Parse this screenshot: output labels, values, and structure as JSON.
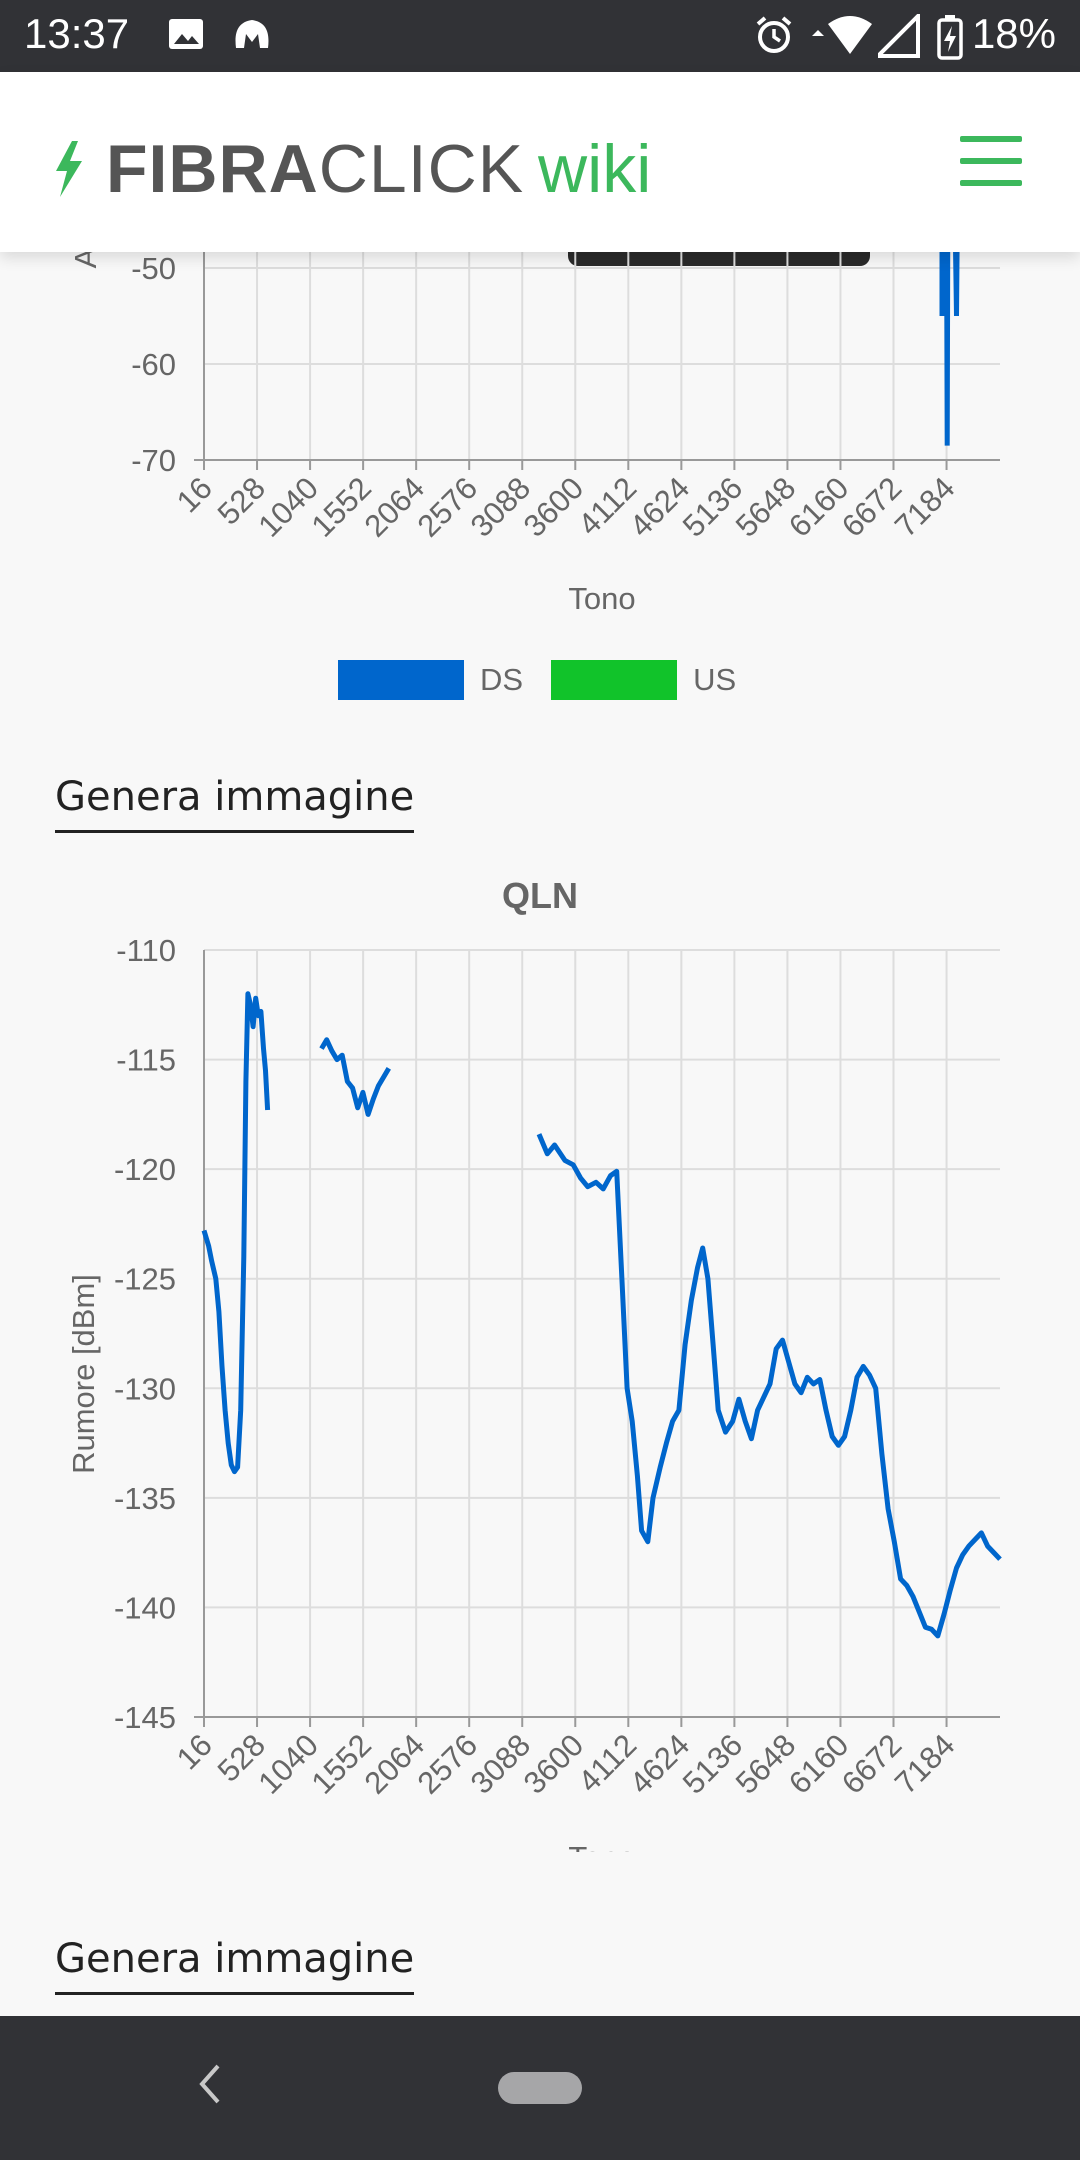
{
  "status_bar": {
    "time": "13:37",
    "battery": "18%",
    "icons": [
      "image-icon",
      "malwarebytes-icon",
      "alarm-icon",
      "wifi-icon",
      "signal-icon",
      "battery-charging-icon"
    ]
  },
  "header": {
    "logo_bold": "FIBRA",
    "logo_light": "CLICK",
    "logo_accent": "wiki",
    "logo_icon": "lightning-bolt-icon",
    "menu_icon": "hamburger-menu-icon",
    "brand_color": "#3cb85c"
  },
  "attenuation_chart": {
    "y_ticks": [
      "-50",
      "-60",
      "-70"
    ],
    "x_ticks": [
      "16",
      "528",
      "1040",
      "1552",
      "2064",
      "2576",
      "3088",
      "3600",
      "4112",
      "4624",
      "5136",
      "5648",
      "6160",
      "6672",
      "7184"
    ],
    "xlabel": "Tono",
    "ylabel_partial": "A",
    "legend": [
      {
        "label": "DS",
        "color": "#0066cc"
      },
      {
        "label": "US",
        "color": "#11c32a"
      }
    ]
  },
  "generate_button_1": "Genera immagine",
  "chart_data": {
    "type": "line",
    "title": "QLN",
    "xlabel": "Tono",
    "ylabel": "Rumore [dBm]",
    "xlim": [
      16,
      7700
    ],
    "ylim": [
      -145,
      -110
    ],
    "x_ticks": [
      "16",
      "528",
      "1040",
      "1552",
      "2064",
      "2576",
      "3088",
      "3600",
      "4112",
      "4624",
      "5136",
      "5648",
      "6160",
      "6672",
      "7184"
    ],
    "y_ticks": [
      "-110",
      "-115",
      "-120",
      "-125",
      "-130",
      "-135",
      "-140",
      "-145"
    ],
    "grid": true,
    "series": [
      {
        "color": "#0066cc",
        "segments": [
          [
            [
              16,
              -122.8
            ],
            [
              60,
              -123.5
            ],
            [
              90,
              -124.2
            ],
            [
              130,
              -125
            ],
            [
              160,
              -126.5
            ],
            [
              190,
              -129
            ],
            [
              220,
              -131
            ],
            [
              250,
              -132.5
            ],
            [
              280,
              -133.5
            ],
            [
              310,
              -133.8
            ],
            [
              340,
              -133.6
            ],
            [
              370,
              -131
            ],
            [
              400,
              -124
            ],
            [
              420,
              -116
            ],
            [
              440,
              -112
            ],
            [
              465,
              -112.5
            ],
            [
              490,
              -113.5
            ],
            [
              515,
              -112.2
            ],
            [
              540,
              -113
            ],
            [
              565,
              -112.8
            ],
            [
              590,
              -114.5
            ],
            [
              610,
              -115.5
            ],
            [
              630,
              -117.3
            ]
          ],
          [
            [
              1150,
              -114.5
            ],
            [
              1200,
              -114.1
            ],
            [
              1250,
              -114.6
            ],
            [
              1300,
              -115
            ],
            [
              1350,
              -114.8
            ],
            [
              1400,
              -116
            ],
            [
              1450,
              -116.3
            ],
            [
              1500,
              -117.2
            ],
            [
              1550,
              -116.5
            ],
            [
              1600,
              -117.5
            ],
            [
              1650,
              -116.8
            ],
            [
              1700,
              -116.2
            ],
            [
              1750,
              -115.8
            ],
            [
              1800,
              -115.4
            ]
          ],
          [
            [
              3250,
              -118.4
            ],
            [
              3330,
              -119.3
            ],
            [
              3400,
              -118.9
            ],
            [
              3500,
              -119.6
            ],
            [
              3580,
              -119.8
            ],
            [
              3650,
              -120.4
            ],
            [
              3720,
              -120.8
            ],
            [
              3800,
              -120.6
            ],
            [
              3870,
              -120.9
            ],
            [
              3940,
              -120.3
            ],
            [
              4000,
              -120.1
            ],
            [
              4050,
              -125
            ],
            [
              4100,
              -130
            ],
            [
              4150,
              -131.5
            ],
            [
              4200,
              -134
            ],
            [
              4240,
              -136.5
            ],
            [
              4300,
              -137
            ],
            [
              4350,
              -135
            ],
            [
              4420,
              -133.6
            ],
            [
              4480,
              -132.5
            ],
            [
              4540,
              -131.5
            ],
            [
              4600,
              -131
            ],
            [
              4660,
              -128
            ],
            [
              4720,
              -126
            ],
            [
              4780,
              -124.5
            ],
            [
              4830,
              -123.6
            ],
            [
              4880,
              -125
            ],
            [
              4930,
              -128
            ],
            [
              4980,
              -131
            ],
            [
              5050,
              -132
            ],
            [
              5120,
              -131.5
            ],
            [
              5180,
              -130.5
            ],
            [
              5240,
              -131.5
            ],
            [
              5300,
              -132.3
            ],
            [
              5360,
              -131
            ],
            [
              5420,
              -130.4
            ],
            [
              5480,
              -129.8
            ],
            [
              5540,
              -128.2
            ],
            [
              5600,
              -127.8
            ],
            [
              5660,
              -128.8
            ],
            [
              5720,
              -129.8
            ],
            [
              5780,
              -130.2
            ],
            [
              5840,
              -129.5
            ],
            [
              5900,
              -129.8
            ],
            [
              5960,
              -129.6
            ],
            [
              6020,
              -131
            ],
            [
              6080,
              -132.2
            ],
            [
              6140,
              -132.6
            ],
            [
              6200,
              -132.2
            ],
            [
              6260,
              -131
            ],
            [
              6320,
              -129.5
            ],
            [
              6380,
              -129
            ],
            [
              6440,
              -129.4
            ],
            [
              6500,
              -130
            ],
            [
              6560,
              -133
            ],
            [
              6620,
              -135.5
            ],
            [
              6680,
              -137
            ],
            [
              6740,
              -138.7
            ],
            [
              6800,
              -139
            ],
            [
              6860,
              -139.5
            ],
            [
              6920,
              -140.2
            ],
            [
              6980,
              -140.9
            ],
            [
              7040,
              -141
            ],
            [
              7100,
              -141.3
            ],
            [
              7160,
              -140.3
            ],
            [
              7220,
              -139.2
            ],
            [
              7280,
              -138.2
            ],
            [
              7340,
              -137.6
            ],
            [
              7400,
              -137.2
            ],
            [
              7460,
              -136.9
            ],
            [
              7520,
              -136.6
            ],
            [
              7580,
              -137.2
            ],
            [
              7640,
              -137.5
            ],
            [
              7700,
              -137.8
            ]
          ]
        ]
      }
    ]
  },
  "generate_button_2": "Genera immagine",
  "nav_bar": {
    "back_icon": "back-chevron-icon",
    "home_icon": "home-pill-icon"
  }
}
